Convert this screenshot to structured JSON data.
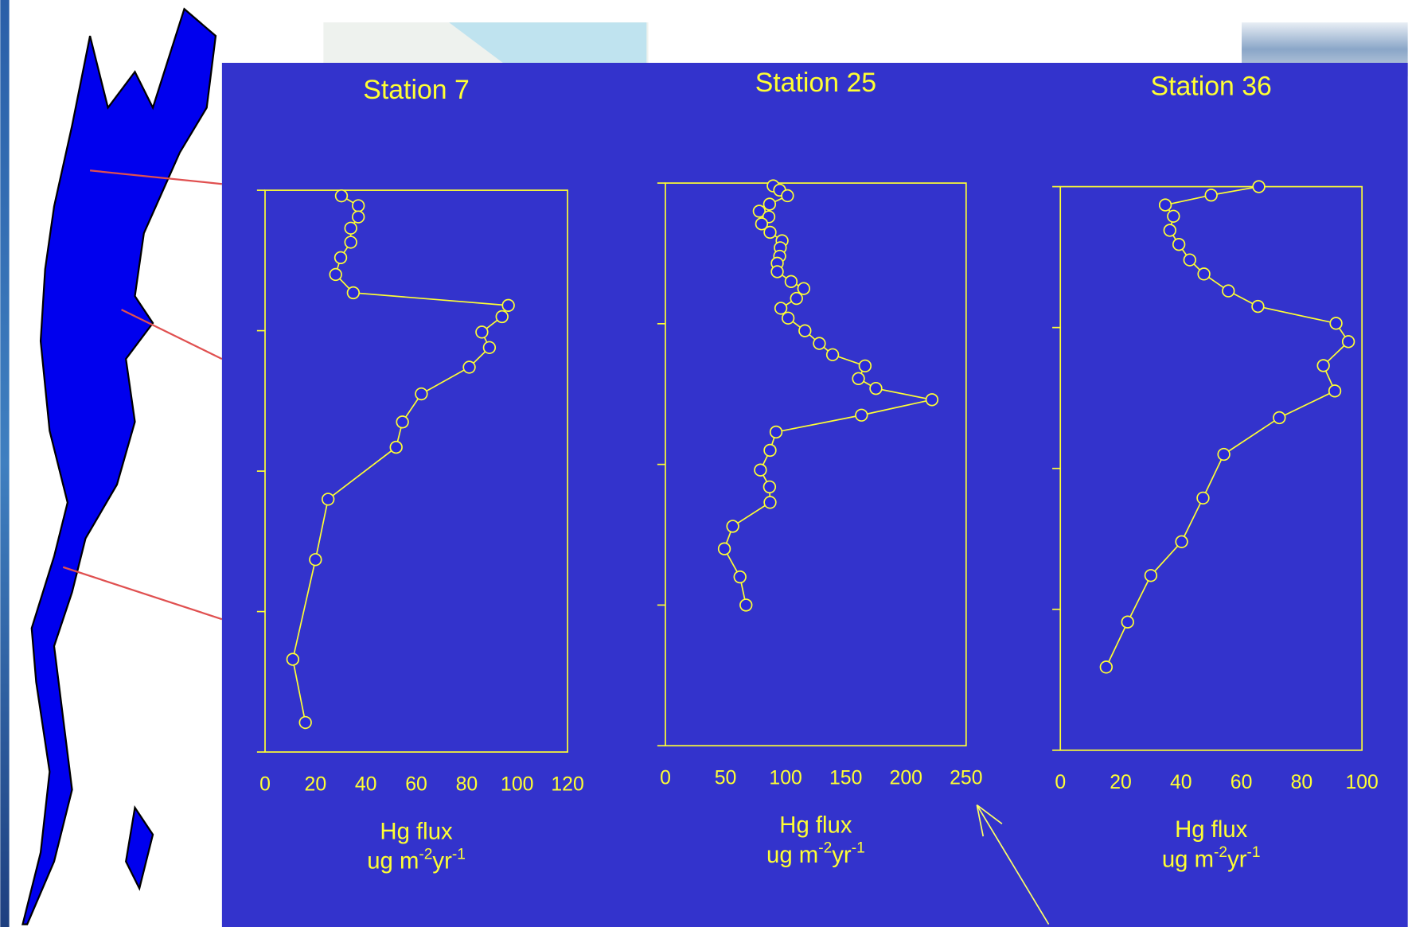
{
  "chart_data": [
    {
      "type": "line",
      "title": "Station 7",
      "xlabel": "Hg flux",
      "xunit": [
        "ug m",
        "-2",
        "yr",
        "-1"
      ],
      "xlim": [
        0,
        120
      ],
      "xticks": [
        0,
        20,
        40,
        60,
        80,
        100,
        120
      ],
      "ylim": [
        0,
        4
      ],
      "yticks": [
        0,
        1,
        2,
        3,
        4
      ],
      "y_inverted": true,
      "series": [
        {
          "color": "#ffff33",
          "marker_fill": "#2b2bd9",
          "values": [
            30.3,
            37,
            37,
            34,
            34,
            30,
            28,
            35,
            96.5,
            94,
            86,
            89,
            81,
            62,
            54.5,
            52,
            25,
            20,
            11,
            16
          ],
          "depth": [
            0.04,
            0.11,
            0.19,
            0.27,
            0.37,
            0.48,
            0.6,
            0.73,
            0.82,
            0.9,
            1.01,
            1.12,
            1.26,
            1.45,
            1.65,
            1.83,
            2.2,
            2.63,
            3.34,
            3.79
          ]
        }
      ]
    },
    {
      "type": "line",
      "title": "Station 25",
      "xlabel": "Hg flux",
      "xunit": [
        "ug m",
        "-2",
        "yr",
        "-1"
      ],
      "xlim": [
        0,
        250
      ],
      "xticks": [
        0,
        50,
        100,
        150,
        200,
        250
      ],
      "ylim": [
        0,
        4
      ],
      "yticks": [
        0,
        1,
        2,
        3,
        4
      ],
      "y_inverted": true,
      "series": [
        {
          "color": "#ffff33",
          "marker_fill": "#2b2bd9",
          "values": [
            89.6,
            95,
            101.5,
            86.6,
            78,
            86,
            80,
            87,
            97,
            95.5,
            95,
            93,
            93,
            104.5,
            115,
            109,
            96,
            102,
            116,
            128,
            139,
            166,
            160.5,
            175,
            221.6,
            163,
            92,
            87,
            79,
            86.6,
            87,
            56,
            49,
            62,
            67
          ],
          "depth": [
            0.02,
            0.05,
            0.09,
            0.15,
            0.2,
            0.24,
            0.29,
            0.35,
            0.41,
            0.46,
            0.52,
            0.57,
            0.63,
            0.7,
            0.75,
            0.82,
            0.89,
            0.96,
            1.05,
            1.14,
            1.22,
            1.3,
            1.39,
            1.46,
            1.54,
            1.65,
            1.77,
            1.9,
            2.04,
            2.16,
            2.27,
            2.44,
            2.6,
            2.8,
            3.0
          ]
        }
      ]
    },
    {
      "type": "line",
      "title": "Station 36",
      "xlabel": "Hg flux",
      "xunit": [
        "ug m",
        "-2",
        "yr",
        "-1"
      ],
      "xlim": [
        0,
        100
      ],
      "xticks": [
        0,
        20,
        40,
        60,
        80,
        100
      ],
      "ylim": [
        0,
        4
      ],
      "yticks": [
        0,
        1,
        2,
        3,
        4
      ],
      "y_inverted": true,
      "series": [
        {
          "color": "#ffff33",
          "marker_fill": "#2b2bd9",
          "values": [
            65.8,
            50,
            34.8,
            37.5,
            36.3,
            39.3,
            42.9,
            47.6,
            55.7,
            65.5,
            91.4,
            95.5,
            87.2,
            91,
            72.6,
            54.2,
            47.3,
            40.2,
            30,
            22.3,
            15.2
          ],
          "depth": [
            0,
            0.06,
            0.13,
            0.21,
            0.31,
            0.41,
            0.52,
            0.62,
            0.74,
            0.85,
            0.97,
            1.1,
            1.27,
            1.45,
            1.64,
            1.9,
            2.21,
            2.52,
            2.76,
            3.09,
            3.41
          ]
        }
      ]
    }
  ]
}
